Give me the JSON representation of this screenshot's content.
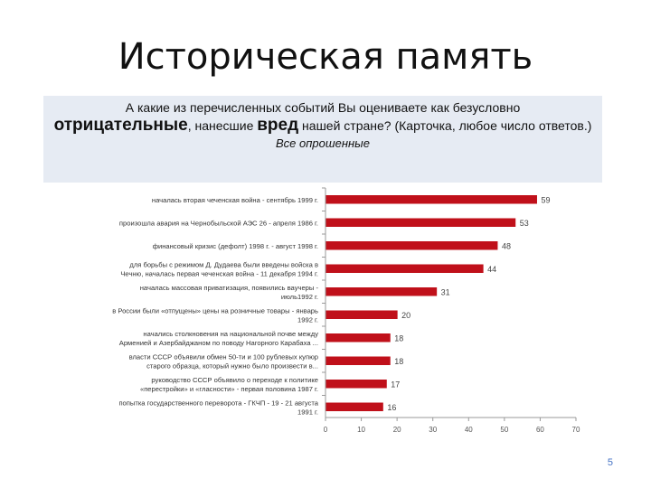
{
  "slide": {
    "title": "Историческая память",
    "question": {
      "line1": "А какие из перечисленных событий Вы оцениваете как безусловно",
      "emph1": "отрицательные",
      "mid": ", нанесшие ",
      "emph2": "вред",
      "tail": " нашей стране? (Карточка, любое число ответов.)",
      "subtitle": "Все опрошенные"
    },
    "page_number": "5"
  },
  "chart_data": {
    "type": "bar",
    "orientation": "horizontal",
    "categories": [
      [
        "началась вторая чеченская война - сентябрь 1999 г."
      ],
      [
        "произошла авария на Чернобыльской АЭС 26 - апреля 1986 г."
      ],
      [
        "финансовый кризис (дефолт) 1998 г. - август 1998 г."
      ],
      [
        "для борьбы с режимом Д. Дудаева были введены войска в",
        "Чечню, началась первая чеченская война - 11 декабря 1994 г."
      ],
      [
        "началась массовая приватизация, появились ваучеры -",
        "июль1992 г."
      ],
      [
        "в России были «отпущены» цены на розничные товары - январь",
        "1992 г."
      ],
      [
        "начались столкновения на национальной почве между",
        "Арменией и Азербайджаном по поводу Нагорного Карабаха ..."
      ],
      [
        "власти СССР объявили обмен 50-ти и 100 рублевых купюр",
        "старого образца, который нужно было произвести в..."
      ],
      [
        "руководство СССР объявило о переходе к политике",
        "«перестройки» и «гласности» - первая половина 1987 г."
      ],
      [
        "попытка государственного переворота - ГКЧП - 19 - 21 августа",
        "1991 г."
      ]
    ],
    "values": [
      59,
      53,
      48,
      44,
      31,
      20,
      18,
      18,
      17,
      16
    ],
    "data_labels": [
      "59",
      "53",
      "48",
      "44",
      "31",
      "20",
      "18",
      "18",
      "17",
      "16"
    ],
    "xlim": [
      0,
      70
    ],
    "xticks": [
      "0",
      "10",
      "20",
      "30",
      "40",
      "50",
      "60",
      "70"
    ],
    "bar_color": "#c0101a",
    "grid": false,
    "legend": "none"
  }
}
